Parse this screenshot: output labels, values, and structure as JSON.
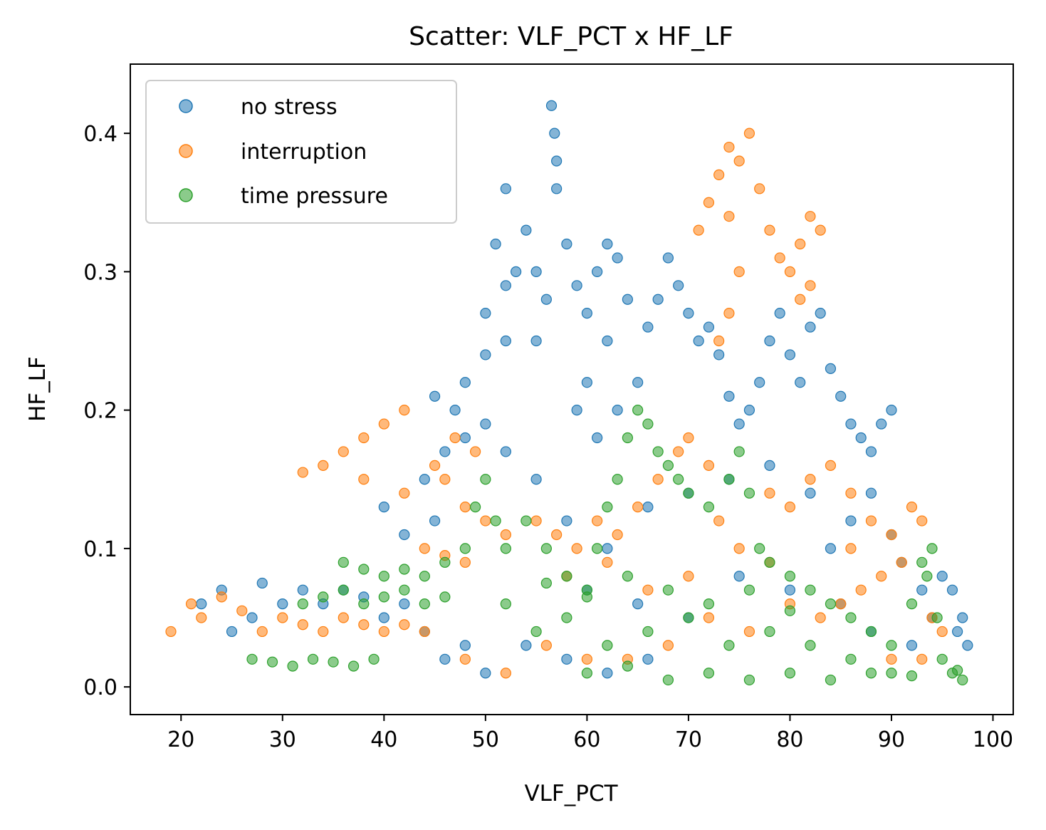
{
  "chart_data": {
    "type": "scatter",
    "title": "Scatter: VLF_PCT x HF_LF",
    "xlabel": "VLF_PCT",
    "ylabel": "HF_LF",
    "xlim": [
      15,
      102
    ],
    "ylim": [
      -0.02,
      0.45
    ],
    "xticks": [
      20,
      30,
      40,
      50,
      60,
      70,
      80,
      90,
      100
    ],
    "yticks": [
      0.0,
      0.1,
      0.2,
      0.3,
      0.4
    ],
    "xtick_labels": [
      "20",
      "30",
      "40",
      "50",
      "60",
      "70",
      "80",
      "90",
      "100"
    ],
    "ytick_labels": [
      "0.0",
      "0.1",
      "0.2",
      "0.3",
      "0.4"
    ],
    "grid": false,
    "legend_position": "top-left",
    "series": [
      {
        "name": "no stress",
        "color": "#1f77b4",
        "points": [
          [
            22,
            0.06
          ],
          [
            24,
            0.07
          ],
          [
            25,
            0.04
          ],
          [
            27,
            0.05
          ],
          [
            28,
            0.075
          ],
          [
            30,
            0.06
          ],
          [
            32,
            0.07
          ],
          [
            34,
            0.06
          ],
          [
            36,
            0.07
          ],
          [
            38,
            0.065
          ],
          [
            40,
            0.05
          ],
          [
            42,
            0.06
          ],
          [
            44,
            0.04
          ],
          [
            46,
            0.02
          ],
          [
            48,
            0.03
          ],
          [
            50,
            0.01
          ],
          [
            45,
            0.12
          ],
          [
            42,
            0.11
          ],
          [
            40,
            0.13
          ],
          [
            44,
            0.15
          ],
          [
            46,
            0.17
          ],
          [
            48,
            0.18
          ],
          [
            50,
            0.19
          ],
          [
            52,
            0.17
          ],
          [
            47,
            0.2
          ],
          [
            45,
            0.21
          ],
          [
            48,
            0.22
          ],
          [
            50,
            0.24
          ],
          [
            52,
            0.25
          ],
          [
            50,
            0.27
          ],
          [
            52,
            0.29
          ],
          [
            53,
            0.3
          ],
          [
            51,
            0.32
          ],
          [
            52,
            0.36
          ],
          [
            54,
            0.33
          ],
          [
            55,
            0.3
          ],
          [
            56,
            0.28
          ],
          [
            55,
            0.25
          ],
          [
            57,
            0.36
          ],
          [
            56.5,
            0.42
          ],
          [
            56.8,
            0.4
          ],
          [
            57,
            0.38
          ],
          [
            58,
            0.32
          ],
          [
            59,
            0.29
          ],
          [
            60,
            0.27
          ],
          [
            61,
            0.3
          ],
          [
            62,
            0.32
          ],
          [
            63,
            0.31
          ],
          [
            64,
            0.28
          ],
          [
            62,
            0.25
          ],
          [
            60,
            0.22
          ],
          [
            59,
            0.2
          ],
          [
            61,
            0.18
          ],
          [
            63,
            0.2
          ],
          [
            65,
            0.22
          ],
          [
            66,
            0.26
          ],
          [
            67,
            0.28
          ],
          [
            68,
            0.31
          ],
          [
            69,
            0.29
          ],
          [
            70,
            0.27
          ],
          [
            71,
            0.25
          ],
          [
            72,
            0.26
          ],
          [
            73,
            0.24
          ],
          [
            74,
            0.21
          ],
          [
            75,
            0.19
          ],
          [
            76,
            0.2
          ],
          [
            77,
            0.22
          ],
          [
            78,
            0.25
          ],
          [
            79,
            0.27
          ],
          [
            80,
            0.24
          ],
          [
            81,
            0.22
          ],
          [
            82,
            0.26
          ],
          [
            83,
            0.27
          ],
          [
            84,
            0.23
          ],
          [
            85,
            0.21
          ],
          [
            86,
            0.19
          ],
          [
            87,
            0.18
          ],
          [
            88,
            0.17
          ],
          [
            89,
            0.19
          ],
          [
            90,
            0.2
          ],
          [
            88,
            0.14
          ],
          [
            86,
            0.12
          ],
          [
            84,
            0.1
          ],
          [
            90,
            0.11
          ],
          [
            91,
            0.09
          ],
          [
            93,
            0.07
          ],
          [
            94,
            0.05
          ],
          [
            95,
            0.08
          ],
          [
            96,
            0.07
          ],
          [
            97,
            0.05
          ],
          [
            97.5,
            0.03
          ],
          [
            96.5,
            0.04
          ],
          [
            55,
            0.15
          ],
          [
            58,
            0.12
          ],
          [
            62,
            0.1
          ],
          [
            66,
            0.13
          ],
          [
            70,
            0.14
          ],
          [
            74,
            0.15
          ],
          [
            78,
            0.16
          ],
          [
            82,
            0.14
          ],
          [
            60,
            0.07
          ],
          [
            65,
            0.06
          ],
          [
            70,
            0.05
          ],
          [
            75,
            0.08
          ],
          [
            80,
            0.07
          ],
          [
            85,
            0.06
          ],
          [
            88,
            0.04
          ],
          [
            92,
            0.03
          ],
          [
            54,
            0.03
          ],
          [
            58,
            0.02
          ],
          [
            62,
            0.01
          ],
          [
            66,
            0.02
          ]
        ]
      },
      {
        "name": "interruption",
        "color": "#ff7f0e",
        "points": [
          [
            19,
            0.04
          ],
          [
            21,
            0.06
          ],
          [
            22,
            0.05
          ],
          [
            24,
            0.065
          ],
          [
            26,
            0.055
          ],
          [
            28,
            0.04
          ],
          [
            30,
            0.05
          ],
          [
            32,
            0.045
          ],
          [
            34,
            0.04
          ],
          [
            36,
            0.05
          ],
          [
            38,
            0.045
          ],
          [
            40,
            0.04
          ],
          [
            42,
            0.045
          ],
          [
            44,
            0.04
          ],
          [
            32,
            0.155
          ],
          [
            34,
            0.16
          ],
          [
            36,
            0.17
          ],
          [
            38,
            0.18
          ],
          [
            40,
            0.19
          ],
          [
            42,
            0.2
          ],
          [
            38,
            0.15
          ],
          [
            42,
            0.14
          ],
          [
            45,
            0.16
          ],
          [
            47,
            0.18
          ],
          [
            49,
            0.17
          ],
          [
            46,
            0.15
          ],
          [
            48,
            0.13
          ],
          [
            50,
            0.12
          ],
          [
            44,
            0.1
          ],
          [
            46,
            0.095
          ],
          [
            48,
            0.09
          ],
          [
            52,
            0.11
          ],
          [
            55,
            0.12
          ],
          [
            57,
            0.11
          ],
          [
            59,
            0.1
          ],
          [
            61,
            0.12
          ],
          [
            63,
            0.11
          ],
          [
            65,
            0.13
          ],
          [
            67,
            0.15
          ],
          [
            69,
            0.17
          ],
          [
            70,
            0.18
          ],
          [
            72,
            0.16
          ],
          [
            71,
            0.33
          ],
          [
            72,
            0.35
          ],
          [
            73,
            0.37
          ],
          [
            74,
            0.39
          ],
          [
            75,
            0.38
          ],
          [
            76,
            0.4
          ],
          [
            74,
            0.34
          ],
          [
            75,
            0.3
          ],
          [
            74,
            0.27
          ],
          [
            73,
            0.25
          ],
          [
            77,
            0.36
          ],
          [
            78,
            0.33
          ],
          [
            79,
            0.31
          ],
          [
            80,
            0.3
          ],
          [
            81,
            0.32
          ],
          [
            82,
            0.34
          ],
          [
            83,
            0.33
          ],
          [
            82,
            0.29
          ],
          [
            81,
            0.28
          ],
          [
            78,
            0.14
          ],
          [
            80,
            0.13
          ],
          [
            82,
            0.15
          ],
          [
            84,
            0.16
          ],
          [
            86,
            0.14
          ],
          [
            88,
            0.12
          ],
          [
            90,
            0.11
          ],
          [
            92,
            0.13
          ],
          [
            93,
            0.12
          ],
          [
            91,
            0.09
          ],
          [
            89,
            0.08
          ],
          [
            87,
            0.07
          ],
          [
            85,
            0.06
          ],
          [
            83,
            0.05
          ],
          [
            80,
            0.06
          ],
          [
            76,
            0.04
          ],
          [
            72,
            0.05
          ],
          [
            68,
            0.03
          ],
          [
            64,
            0.02
          ],
          [
            60,
            0.02
          ],
          [
            56,
            0.03
          ],
          [
            52,
            0.01
          ],
          [
            48,
            0.02
          ],
          [
            75,
            0.1
          ],
          [
            78,
            0.09
          ],
          [
            70,
            0.08
          ],
          [
            66,
            0.07
          ],
          [
            94,
            0.05
          ],
          [
            95,
            0.04
          ],
          [
            93,
            0.02
          ],
          [
            90,
            0.02
          ],
          [
            58,
            0.08
          ],
          [
            62,
            0.09
          ],
          [
            73,
            0.12
          ],
          [
            86,
            0.1
          ]
        ]
      },
      {
        "name": "time pressure",
        "color": "#2ca02c",
        "points": [
          [
            27,
            0.02
          ],
          [
            29,
            0.018
          ],
          [
            31,
            0.015
          ],
          [
            33,
            0.02
          ],
          [
            35,
            0.018
          ],
          [
            37,
            0.015
          ],
          [
            39,
            0.02
          ],
          [
            32,
            0.06
          ],
          [
            34,
            0.065
          ],
          [
            36,
            0.07
          ],
          [
            38,
            0.06
          ],
          [
            40,
            0.065
          ],
          [
            42,
            0.07
          ],
          [
            44,
            0.06
          ],
          [
            46,
            0.065
          ],
          [
            36,
            0.09
          ],
          [
            38,
            0.085
          ],
          [
            40,
            0.08
          ],
          [
            42,
            0.085
          ],
          [
            44,
            0.08
          ],
          [
            46,
            0.09
          ],
          [
            48,
            0.1
          ],
          [
            49,
            0.13
          ],
          [
            50,
            0.15
          ],
          [
            51,
            0.12
          ],
          [
            52,
            0.1
          ],
          [
            54,
            0.12
          ],
          [
            56,
            0.1
          ],
          [
            58,
            0.08
          ],
          [
            60,
            0.07
          ],
          [
            61,
            0.1
          ],
          [
            62,
            0.13
          ],
          [
            63,
            0.15
          ],
          [
            64,
            0.18
          ],
          [
            65,
            0.2
          ],
          [
            66,
            0.19
          ],
          [
            67,
            0.17
          ],
          [
            68,
            0.16
          ],
          [
            69,
            0.15
          ],
          [
            70,
            0.14
          ],
          [
            72,
            0.13
          ],
          [
            74,
            0.15
          ],
          [
            75,
            0.17
          ],
          [
            76,
            0.14
          ],
          [
            77,
            0.1
          ],
          [
            78,
            0.09
          ],
          [
            80,
            0.08
          ],
          [
            82,
            0.07
          ],
          [
            84,
            0.06
          ],
          [
            86,
            0.05
          ],
          [
            88,
            0.04
          ],
          [
            90,
            0.03
          ],
          [
            92,
            0.06
          ],
          [
            93,
            0.09
          ],
          [
            94,
            0.1
          ],
          [
            93.5,
            0.08
          ],
          [
            94.5,
            0.05
          ],
          [
            95,
            0.02
          ],
          [
            96,
            0.01
          ],
          [
            97,
            0.005
          ],
          [
            96.5,
            0.012
          ],
          [
            55,
            0.04
          ],
          [
            58,
            0.05
          ],
          [
            62,
            0.03
          ],
          [
            66,
            0.04
          ],
          [
            70,
            0.05
          ],
          [
            74,
            0.03
          ],
          [
            78,
            0.04
          ],
          [
            82,
            0.03
          ],
          [
            86,
            0.02
          ],
          [
            90,
            0.01
          ],
          [
            60,
            0.01
          ],
          [
            64,
            0.015
          ],
          [
            68,
            0.005
          ],
          [
            72,
            0.01
          ],
          [
            76,
            0.005
          ],
          [
            80,
            0.01
          ],
          [
            84,
            0.005
          ],
          [
            88,
            0.01
          ],
          [
            92,
            0.008
          ],
          [
            52,
            0.06
          ],
          [
            56,
            0.075
          ],
          [
            60,
            0.065
          ],
          [
            64,
            0.08
          ],
          [
            68,
            0.07
          ],
          [
            72,
            0.06
          ],
          [
            76,
            0.07
          ],
          [
            80,
            0.055
          ]
        ]
      }
    ]
  }
}
